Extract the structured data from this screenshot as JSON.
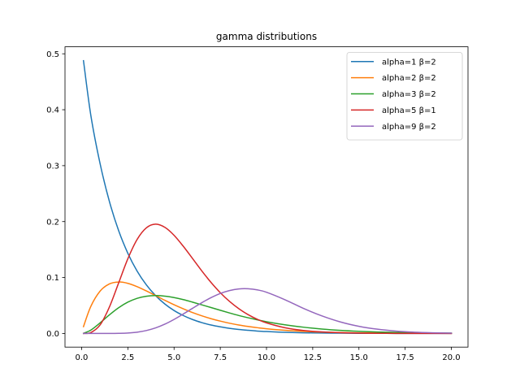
{
  "chart_data": {
    "type": "line",
    "title": "gamma distributions",
    "xlabel": "",
    "ylabel": "",
    "xlim": [
      -0.9,
      20.9
    ],
    "ylim": [
      -0.0244,
      0.5125
    ],
    "x_ticks": [
      0.0,
      2.5,
      5.0,
      7.5,
      10.0,
      12.5,
      15.0,
      17.5,
      20.0
    ],
    "x_tick_labels": [
      "0.0",
      "2.5",
      "5.0",
      "7.5",
      "10.0",
      "12.5",
      "15.0",
      "17.5",
      "20.0"
    ],
    "y_ticks": [
      0.0,
      0.1,
      0.2,
      0.3,
      0.4,
      0.5
    ],
    "y_tick_labels": [
      "0.0",
      "0.1",
      "0.2",
      "0.3",
      "0.4",
      "0.5"
    ],
    "grid": false,
    "legend_position": "top-right",
    "x": [
      0.1,
      0.5,
      1.0,
      1.5,
      2.0,
      2.5,
      3.0,
      3.5,
      4.0,
      4.5,
      5.0,
      5.5,
      6.0,
      6.5,
      7.0,
      7.5,
      8.0,
      8.5,
      9.0,
      9.5,
      10.0,
      11.0,
      12.0,
      13.0,
      14.0,
      15.0,
      16.0,
      17.0,
      18.0,
      19.0,
      20.0
    ],
    "series": [
      {
        "name": "alpha=1 β=2",
        "color": "#1f77b4",
        "values": [
          0.4877,
          0.3894,
          0.3033,
          0.2362,
          0.1839,
          0.1433,
          0.1116,
          0.0869,
          0.0677,
          0.0527,
          0.041,
          0.032,
          0.0249,
          0.0194,
          0.0151,
          0.0118,
          0.0092,
          0.0071,
          0.0056,
          0.0043,
          0.0034,
          0.002,
          0.0012,
          0.0008,
          0.0005,
          0.0003,
          0.0002,
          0.0001,
          0.0001,
          0.0,
          0.0
        ]
      },
      {
        "name": "alpha=2 β=2",
        "color": "#ff7f0e",
        "values": [
          0.0122,
          0.0487,
          0.0758,
          0.0886,
          0.092,
          0.0896,
          0.0837,
          0.076,
          0.0677,
          0.0593,
          0.0513,
          0.044,
          0.0373,
          0.0315,
          0.0264,
          0.0221,
          0.0183,
          0.0151,
          0.0125,
          0.0103,
          0.0084,
          0.0056,
          0.0037,
          0.0024,
          0.0016,
          0.001,
          0.0007,
          0.0004,
          0.0003,
          0.0002,
          0.0001
        ]
      },
      {
        "name": "alpha=3 β=2",
        "color": "#2ca02c",
        "values": [
          0.0003,
          0.0061,
          0.019,
          0.0332,
          0.046,
          0.056,
          0.0628,
          0.0665,
          0.0677,
          0.0667,
          0.0641,
          0.0605,
          0.056,
          0.0512,
          0.0463,
          0.0414,
          0.0366,
          0.0321,
          0.0281,
          0.0244,
          0.021,
          0.0155,
          0.0112,
          0.0079,
          0.0055,
          0.0038,
          0.0026,
          0.0018,
          0.0012,
          0.0008,
          0.0005
        ]
      },
      {
        "name": "alpha=5 β=1",
        "color": "#d62728",
        "values": [
          0.0,
          0.0016,
          0.0153,
          0.0471,
          0.0902,
          0.1336,
          0.168,
          0.1888,
          0.1954,
          0.1898,
          0.1755,
          0.1558,
          0.1339,
          0.1118,
          0.0912,
          0.0729,
          0.0573,
          0.0443,
          0.0337,
          0.0254,
          0.0189,
          0.0102,
          0.0053,
          0.0027,
          0.0013,
          0.0006,
          0.0003,
          0.0001,
          0.0001,
          0.0,
          0.0
        ]
      },
      {
        "name": "alpha=9 β=2",
        "color": "#9467bd",
        "values": [
          0.0,
          0.0,
          0.0,
          0.0,
          0.0002,
          0.0008,
          0.0023,
          0.0052,
          0.0099,
          0.0166,
          0.0251,
          0.0348,
          0.045,
          0.055,
          0.064,
          0.0715,
          0.0767,
          0.0796,
          0.0799,
          0.0779,
          0.0737,
          0.0603,
          0.0448,
          0.0314,
          0.0206,
          0.0128,
          0.0076,
          0.0043,
          0.0023,
          0.0012,
          0.0006
        ]
      }
    ],
    "y_scale_note": ""
  }
}
